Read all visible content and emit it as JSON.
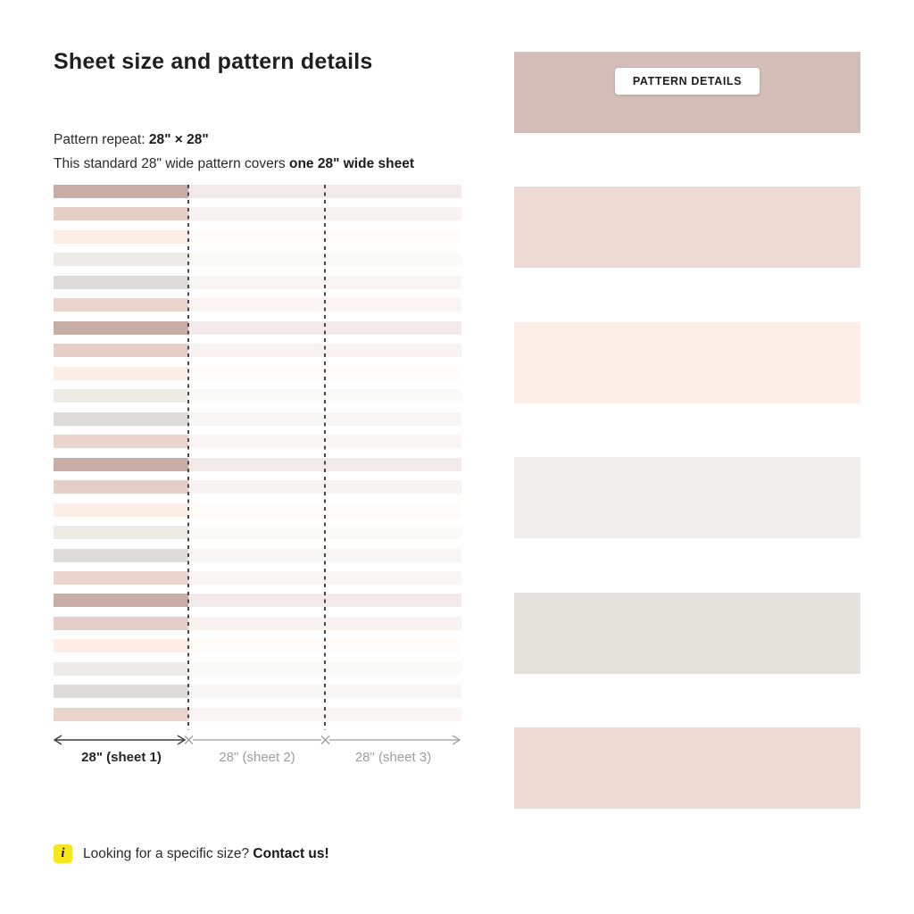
{
  "title": "Sheet size and pattern details",
  "details": {
    "repeat_label": "Pattern repeat: ",
    "repeat_value": "28\" × 28\"",
    "coverage_label": "This standard 28\" wide pattern covers ",
    "coverage_bold": "one 28\" wide sheet"
  },
  "pattern": {
    "stripe_count": 24,
    "stripe_cycle": [
      "#c8ada5",
      "#e5cec6",
      "#fceee4",
      "#ecebe6",
      "#dedcd8",
      "#ebd4cb"
    ],
    "fade_color": "rgba(255,255,255,0.74)",
    "dash_color": "#474747",
    "sheets": [
      {
        "label": "28\" (sheet 1)"
      },
      {
        "label": "28\" (sheet 2)"
      },
      {
        "label": "28\" (sheet 3)"
      }
    ]
  },
  "swatch_panel": {
    "button_label": "PATTERN DETAILS",
    "swatches": [
      "#d3bdb6",
      "#eedcd4",
      "#fdefe7",
      "#f0efeb",
      "#e5e2de",
      "#eedcd4"
    ]
  },
  "footer": {
    "icon_glyph": "i",
    "icon_color": "#f7e51d",
    "text": "Looking for a specific size? ",
    "cta": "Contact us!"
  }
}
